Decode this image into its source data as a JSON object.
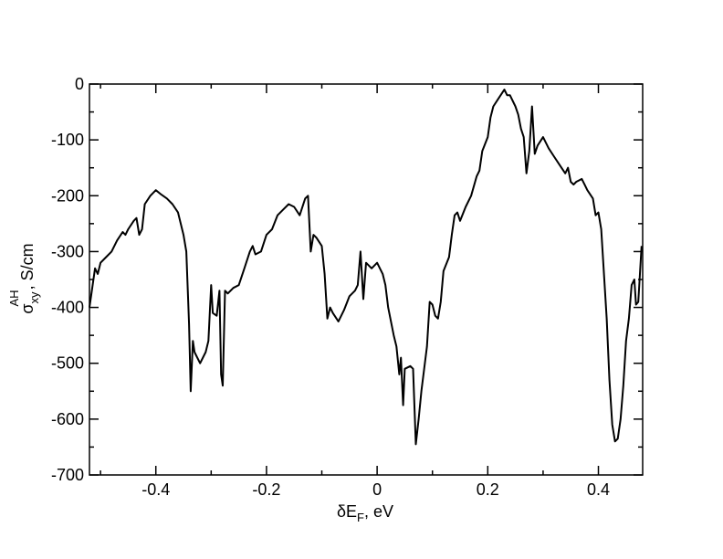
{
  "chart_data": {
    "type": "line",
    "xlabel": {
      "symbol": "δE",
      "sub": "F",
      "rest": ", eV"
    },
    "ylabel": {
      "symbol": "σ",
      "sub": "xy",
      "sup": "AH",
      "rest": ", S/cm"
    },
    "color": "#000000",
    "xlim": [
      -0.52,
      0.48
    ],
    "ylim": [
      -700,
      0
    ],
    "xticks": [
      -0.4,
      -0.2,
      0,
      0.2,
      0.4
    ],
    "yticks": [
      0,
      -100,
      -200,
      -300,
      -400,
      -500,
      -600,
      -700
    ],
    "xminorticks": [
      -0.5,
      -0.3,
      -0.1,
      0.1,
      0.3
    ],
    "yminorticks": [
      -50,
      -150,
      -250,
      -350,
      -450,
      -550,
      -650
    ],
    "x": [
      -0.52,
      -0.51,
      -0.505,
      -0.5,
      -0.49,
      -0.48,
      -0.47,
      -0.46,
      -0.455,
      -0.45,
      -0.44,
      -0.435,
      -0.43,
      -0.425,
      -0.42,
      -0.41,
      -0.4,
      -0.39,
      -0.38,
      -0.37,
      -0.36,
      -0.355,
      -0.35,
      -0.345,
      -0.34,
      -0.337,
      -0.333,
      -0.33,
      -0.32,
      -0.31,
      -0.305,
      -0.3,
      -0.297,
      -0.29,
      -0.285,
      -0.282,
      -0.279,
      -0.275,
      -0.27,
      -0.26,
      -0.25,
      -0.24,
      -0.23,
      -0.225,
      -0.22,
      -0.21,
      -0.2,
      -0.19,
      -0.18,
      -0.17,
      -0.16,
      -0.15,
      -0.14,
      -0.13,
      -0.125,
      -0.12,
      -0.115,
      -0.11,
      -0.1,
      -0.095,
      -0.09,
      -0.085,
      -0.08,
      -0.07,
      -0.06,
      -0.05,
      -0.04,
      -0.035,
      -0.03,
      -0.025,
      -0.02,
      -0.01,
      0,
      0.01,
      0.015,
      0.02,
      0.03,
      0.035,
      0.04,
      0.043,
      0.047,
      0.05,
      0.06,
      0.065,
      0.07,
      0.075,
      0.08,
      0.09,
      0.095,
      0.1,
      0.105,
      0.11,
      0.115,
      0.12,
      0.13,
      0.135,
      0.14,
      0.145,
      0.15,
      0.16,
      0.17,
      0.18,
      0.185,
      0.19,
      0.2,
      0.205,
      0.21,
      0.22,
      0.23,
      0.235,
      0.24,
      0.25,
      0.255,
      0.26,
      0.265,
      0.27,
      0.275,
      0.28,
      0.285,
      0.29,
      0.3,
      0.31,
      0.32,
      0.33,
      0.34,
      0.345,
      0.35,
      0.355,
      0.36,
      0.37,
      0.375,
      0.38,
      0.39,
      0.395,
      0.4,
      0.405,
      0.41,
      0.415,
      0.42,
      0.425,
      0.43,
      0.435,
      0.44,
      0.445,
      0.45,
      0.455,
      0.46,
      0.465,
      0.468,
      0.472,
      0.475,
      0.478
    ],
    "values": [
      -400,
      -330,
      -340,
      -320,
      -310,
      -300,
      -280,
      -265,
      -270,
      -260,
      -245,
      -240,
      -270,
      -260,
      -215,
      -200,
      -190,
      -198,
      -205,
      -215,
      -230,
      -250,
      -270,
      -300,
      -430,
      -550,
      -460,
      -480,
      -500,
      -480,
      -460,
      -360,
      -410,
      -415,
      -370,
      -520,
      -540,
      -370,
      -375,
      -365,
      -360,
      -330,
      -300,
      -290,
      -305,
      -300,
      -270,
      -260,
      -235,
      -225,
      -215,
      -220,
      -235,
      -205,
      -200,
      -300,
      -270,
      -275,
      -290,
      -340,
      -420,
      -400,
      -410,
      -425,
      -405,
      -380,
      -370,
      -360,
      -300,
      -385,
      -320,
      -330,
      -320,
      -340,
      -360,
      -400,
      -450,
      -470,
      -520,
      -490,
      -575,
      -510,
      -505,
      -510,
      -645,
      -600,
      -550,
      -470,
      -390,
      -395,
      -415,
      -420,
      -390,
      -335,
      -310,
      -270,
      -235,
      -230,
      -245,
      -220,
      -200,
      -165,
      -155,
      -120,
      -95,
      -60,
      -40,
      -25,
      -10,
      -20,
      -20,
      -40,
      -55,
      -80,
      -95,
      -160,
      -120,
      -40,
      -125,
      -110,
      -95,
      -115,
      -130,
      -145,
      -160,
      -150,
      -175,
      -180,
      -175,
      -170,
      -180,
      -190,
      -205,
      -235,
      -230,
      -260,
      -340,
      -420,
      -530,
      -610,
      -640,
      -635,
      -600,
      -540,
      -460,
      -420,
      -360,
      -350,
      -395,
      -390,
      -340,
      -290
    ]
  }
}
